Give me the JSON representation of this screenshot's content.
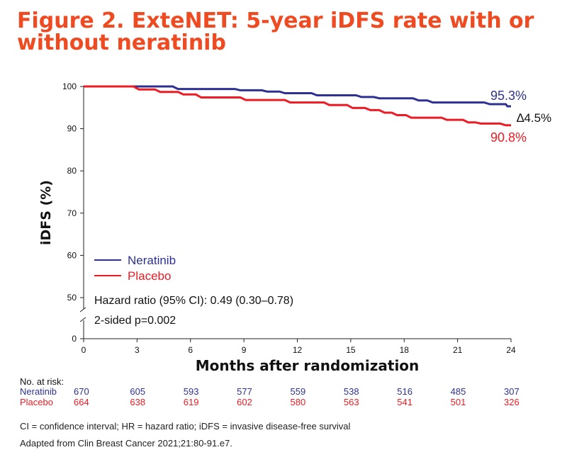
{
  "title": "Figure 2. ExteNET: 5-year iDFS rate with or without neratinib",
  "chart_data": {
    "type": "line",
    "xlabel": "Months after randomization",
    "ylabel": "iDFS (%)",
    "x_ticks": [
      0,
      3,
      6,
      9,
      12,
      15,
      18,
      21,
      24
    ],
    "y_ticks": [
      0,
      50,
      60,
      70,
      80,
      90,
      100
    ],
    "xlim": [
      0,
      24
    ],
    "ylim": [
      0,
      100
    ],
    "y_axis_break": true,
    "legend_placement": "lower-left",
    "series": [
      {
        "name": "Neratinib",
        "color": "#2e3192",
        "end_label": "95.3%",
        "points": [
          [
            0,
            100
          ],
          [
            5,
            100
          ],
          [
            5.3,
            99.4
          ],
          [
            8.5,
            99.4
          ],
          [
            8.8,
            99.1
          ],
          [
            10,
            99.1
          ],
          [
            10.3,
            98.8
          ],
          [
            11,
            98.8
          ],
          [
            11.3,
            98.4
          ],
          [
            12.8,
            98.4
          ],
          [
            13.1,
            97.9
          ],
          [
            15.3,
            97.9
          ],
          [
            15.6,
            97.5
          ],
          [
            16.3,
            97.5
          ],
          [
            16.6,
            97.2
          ],
          [
            18.5,
            97.2
          ],
          [
            18.8,
            96.7
          ],
          [
            19.3,
            96.7
          ],
          [
            19.6,
            96.2
          ],
          [
            22.5,
            96.2
          ],
          [
            22.8,
            95.8
          ],
          [
            23.7,
            95.8
          ],
          [
            23.8,
            95.3
          ],
          [
            24,
            95.3
          ]
        ]
      },
      {
        "name": "Placebo",
        "color": "#ed1c24",
        "end_label": "90.8%",
        "points": [
          [
            0,
            100
          ],
          [
            2.8,
            100
          ],
          [
            3.1,
            99.3
          ],
          [
            4,
            99.3
          ],
          [
            4.3,
            98.7
          ],
          [
            5.3,
            98.7
          ],
          [
            5.6,
            98.1
          ],
          [
            6.3,
            98.1
          ],
          [
            6.6,
            97.4
          ],
          [
            8.8,
            97.4
          ],
          [
            9.1,
            96.8
          ],
          [
            11.3,
            96.8
          ],
          [
            11.6,
            96.2
          ],
          [
            13.5,
            96.2
          ],
          [
            13.8,
            95.6
          ],
          [
            14.8,
            95.6
          ],
          [
            15.1,
            94.9
          ],
          [
            15.8,
            94.9
          ],
          [
            16.1,
            94.4
          ],
          [
            16.6,
            94.4
          ],
          [
            16.9,
            93.8
          ],
          [
            17.3,
            93.8
          ],
          [
            17.6,
            93.2
          ],
          [
            18.1,
            93.2
          ],
          [
            18.4,
            92.6
          ],
          [
            20.1,
            92.6
          ],
          [
            20.4,
            92.1
          ],
          [
            21.3,
            92.1
          ],
          [
            21.6,
            91.5
          ],
          [
            22,
            91.5
          ],
          [
            22.3,
            91.2
          ],
          [
            23.4,
            91.2
          ],
          [
            23.7,
            90.8
          ],
          [
            24,
            90.8
          ]
        ]
      }
    ],
    "delta_label": "∆4.5%",
    "annotation_lines": [
      "Hazard ratio (95% CI): 0.49 (0.30–0.78)",
      "2-sided p=0.002"
    ]
  },
  "risk_table": {
    "header": "No. at risk:",
    "months": [
      0,
      3,
      6,
      9,
      12,
      15,
      18,
      21,
      24
    ],
    "rows": [
      {
        "name": "Neratinib",
        "color": "#2e3192",
        "values": [
          "670",
          "605",
          "593",
          "577",
          "559",
          "538",
          "516",
          "485",
          "307"
        ]
      },
      {
        "name": "Placebo",
        "color": "#ed1c24",
        "values": [
          "664",
          "638",
          "619",
          "602",
          "580",
          "563",
          "541",
          "501",
          "326"
        ]
      }
    ]
  },
  "footnotes": [
    "CI = confidence interval; HR = hazard ratio; iDFS = invasive disease-free survival",
    "Adapted from Clin Breast Cancer 2021;21:80-91.e7."
  ]
}
